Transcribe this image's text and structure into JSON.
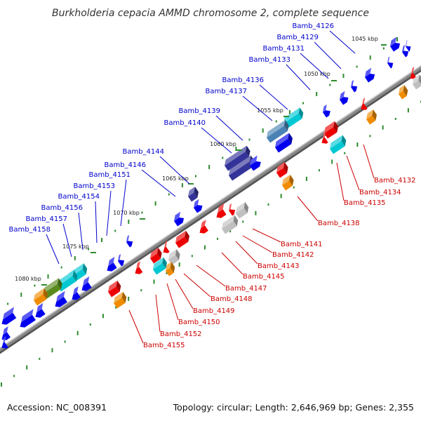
{
  "title": "Burkholderia cepacia AMMD chromosome 2, complete sequence",
  "footer": {
    "accession": "Accession: NC_008391",
    "topology": "Topology: circular; Length: 2,646,969 bp; Genes: 2,355"
  },
  "colors": {
    "upper_label": "#0000cc",
    "lower_label": "#cc0000",
    "backbone": "#888888",
    "tick": "#2e8b2e",
    "gene_blue": "#0000ee",
    "gene_navy": "#333399",
    "gene_steel": "#4a82b4",
    "gene_cyan": "#00c8d2",
    "gene_olive": "#5a8a1e",
    "gene_orange": "#f08c00",
    "gene_red": "#ee0000",
    "gene_grey": "#c0c0c0"
  },
  "kbp_markers": [
    "1045 kbp",
    "1050 kbp",
    "1055 kbp",
    "1060 kbp",
    "1065 kbp",
    "1070 kbp",
    "1075 kbp",
    "1080 kbp"
  ],
  "upper_labels": [
    "Bamb_4126",
    "Bamb_4129",
    "Bamb_4131",
    "Bamb_4133",
    "Bamb_4136",
    "Bamb_4137",
    "Bamb_4139",
    "Bamb_4140",
    "Bamb_4144",
    "Bamb_4146",
    "Bamb_4151",
    "Bamb_4153",
    "Bamb_4154",
    "Bamb_4156",
    "Bamb_4157",
    "Bamb_4158"
  ],
  "lower_labels": [
    "Bamb_4132",
    "Bamb_4134",
    "Bamb_4135",
    "Bamb_4138",
    "Bamb_4141",
    "Bamb_4142",
    "Bamb_4143",
    "Bamb_4145",
    "Bamb_4147",
    "Bamb_4148",
    "Bamb_4149",
    "Bamb_4150",
    "Bamb_4152",
    "Bamb_4155"
  ]
}
